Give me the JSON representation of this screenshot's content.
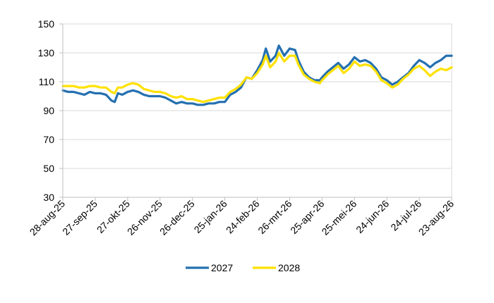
{
  "chart_data": {
    "type": "line",
    "title": "",
    "xlabel": "",
    "ylabel": "",
    "ylim": [
      30,
      150
    ],
    "yticks": [
      30,
      50,
      70,
      90,
      110,
      130,
      150
    ],
    "grid": "horizontal",
    "legend_position": "bottom",
    "x_ticks": [
      "28-aug-25",
      "27-sep-25",
      "27-okt-25",
      "26-nov-25",
      "26-dec-25",
      "25-jan-26",
      "24-feb-26",
      "26-mrt-26",
      "25-apr-26",
      "25-mei-26",
      "24-jun-26",
      "24-jul-26",
      "23-aug-26"
    ],
    "x_range": [
      "28-aug-25",
      "23-aug-26"
    ],
    "series": [
      {
        "name": "2027",
        "color": "#2470B0",
        "points": [
          [
            "28-aug-25",
            104
          ],
          [
            "02-sep-25",
            103
          ],
          [
            "07-sep-25",
            103
          ],
          [
            "12-sep-25",
            102
          ],
          [
            "17-sep-25",
            101
          ],
          [
            "22-sep-25",
            103
          ],
          [
            "27-sep-25",
            102
          ],
          [
            "02-okt-25",
            102
          ],
          [
            "07-okt-25",
            101
          ],
          [
            "12-okt-25",
            97
          ],
          [
            "15-okt-25",
            96
          ],
          [
            "18-okt-25",
            102
          ],
          [
            "22-okt-25",
            101
          ],
          [
            "27-okt-25",
            103
          ],
          [
            "01-nov-25",
            104
          ],
          [
            "06-nov-25",
            103
          ],
          [
            "11-nov-25",
            101
          ],
          [
            "16-nov-25",
            100
          ],
          [
            "21-nov-25",
            100
          ],
          [
            "26-nov-25",
            100
          ],
          [
            "01-dec-25",
            99
          ],
          [
            "06-dec-25",
            97
          ],
          [
            "11-dec-25",
            95
          ],
          [
            "16-dec-25",
            96
          ],
          [
            "21-dec-25",
            95
          ],
          [
            "26-dec-25",
            95
          ],
          [
            "31-dec-25",
            94
          ],
          [
            "05-jan-26",
            94
          ],
          [
            "10-jan-26",
            95
          ],
          [
            "15-jan-26",
            95
          ],
          [
            "20-jan-26",
            96
          ],
          [
            "25-jan-26",
            96
          ],
          [
            "30-jan-26",
            101
          ],
          [
            "04-feb-26",
            103
          ],
          [
            "09-feb-26",
            106
          ],
          [
            "14-feb-26",
            113
          ],
          [
            "19-feb-26",
            112
          ],
          [
            "24-feb-26",
            118
          ],
          [
            "01-mrt-26",
            125
          ],
          [
            "04-mrt-26",
            133
          ],
          [
            "08-mrt-26",
            124
          ],
          [
            "13-mrt-26",
            128
          ],
          [
            "16-mrt-26",
            135
          ],
          [
            "21-mrt-26",
            128
          ],
          [
            "26-mrt-26",
            133
          ],
          [
            "31-mrt-26",
            132
          ],
          [
            "03-apr-26",
            125
          ],
          [
            "08-apr-26",
            117
          ],
          [
            "13-apr-26",
            113
          ],
          [
            "18-apr-26",
            111
          ],
          [
            "23-apr-26",
            111
          ],
          [
            "25-apr-26",
            113
          ],
          [
            "30-apr-26",
            117
          ],
          [
            "05-mei-26",
            120
          ],
          [
            "10-mei-26",
            123
          ],
          [
            "15-mei-26",
            119
          ],
          [
            "20-mei-26",
            122
          ],
          [
            "25-mei-26",
            127
          ],
          [
            "30-mei-26",
            124
          ],
          [
            "04-jun-26",
            125
          ],
          [
            "09-jun-26",
            123
          ],
          [
            "14-jun-26",
            119
          ],
          [
            "19-jun-26",
            113
          ],
          [
            "24-jun-26",
            111
          ],
          [
            "29-jun-26",
            108
          ],
          [
            "04-jul-26",
            110
          ],
          [
            "09-jul-26",
            113
          ],
          [
            "14-jul-26",
            116
          ],
          [
            "19-jul-26",
            121
          ],
          [
            "24-jul-26",
            125
          ],
          [
            "29-jul-26",
            123
          ],
          [
            "03-aug-26",
            120
          ],
          [
            "08-aug-26",
            123
          ],
          [
            "13-aug-26",
            125
          ],
          [
            "18-aug-26",
            128
          ],
          [
            "23-aug-26",
            128
          ]
        ]
      },
      {
        "name": "2028",
        "color": "#FFE100",
        "points": [
          [
            "28-aug-25",
            107
          ],
          [
            "02-sep-25",
            107
          ],
          [
            "07-sep-25",
            107
          ],
          [
            "12-sep-25",
            106
          ],
          [
            "17-sep-25",
            106
          ],
          [
            "22-sep-25",
            107
          ],
          [
            "27-sep-25",
            107
          ],
          [
            "02-okt-25",
            106
          ],
          [
            "07-okt-25",
            106
          ],
          [
            "12-okt-25",
            103
          ],
          [
            "15-okt-25",
            102
          ],
          [
            "18-okt-25",
            106
          ],
          [
            "22-okt-25",
            106
          ],
          [
            "27-okt-25",
            108
          ],
          [
            "01-nov-25",
            109
          ],
          [
            "06-nov-25",
            108
          ],
          [
            "11-nov-25",
            105
          ],
          [
            "16-nov-25",
            104
          ],
          [
            "21-nov-25",
            103
          ],
          [
            "26-nov-25",
            103
          ],
          [
            "01-dec-25",
            102
          ],
          [
            "06-dec-25",
            100
          ],
          [
            "11-dec-25",
            99
          ],
          [
            "16-dec-25",
            100
          ],
          [
            "21-dec-25",
            98
          ],
          [
            "26-dec-25",
            98
          ],
          [
            "31-dec-25",
            97
          ],
          [
            "05-jan-26",
            96
          ],
          [
            "10-jan-26",
            97
          ],
          [
            "15-jan-26",
            98
          ],
          [
            "20-jan-26",
            99
          ],
          [
            "25-jan-26",
            99
          ],
          [
            "30-jan-26",
            103
          ],
          [
            "04-feb-26",
            105
          ],
          [
            "09-feb-26",
            108
          ],
          [
            "14-feb-26",
            113
          ],
          [
            "19-feb-26",
            112
          ],
          [
            "24-feb-26",
            116
          ],
          [
            "01-mrt-26",
            122
          ],
          [
            "04-mrt-26",
            128
          ],
          [
            "08-mrt-26",
            120
          ],
          [
            "13-mrt-26",
            124
          ],
          [
            "16-mrt-26",
            130
          ],
          [
            "21-mrt-26",
            124
          ],
          [
            "26-mrt-26",
            128
          ],
          [
            "31-mrt-26",
            128
          ],
          [
            "03-apr-26",
            122
          ],
          [
            "08-apr-26",
            115
          ],
          [
            "13-apr-26",
            112
          ],
          [
            "18-apr-26",
            110
          ],
          [
            "23-apr-26",
            109
          ],
          [
            "25-apr-26",
            111
          ],
          [
            "30-apr-26",
            115
          ],
          [
            "05-mei-26",
            118
          ],
          [
            "10-mei-26",
            121
          ],
          [
            "15-mei-26",
            116
          ],
          [
            "20-mei-26",
            119
          ],
          [
            "25-mei-26",
            124
          ],
          [
            "30-mei-26",
            121
          ],
          [
            "04-jun-26",
            122
          ],
          [
            "09-jun-26",
            121
          ],
          [
            "14-jun-26",
            117
          ],
          [
            "19-jun-26",
            111
          ],
          [
            "24-jun-26",
            109
          ],
          [
            "29-jun-26",
            106
          ],
          [
            "04-jul-26",
            108
          ],
          [
            "09-jul-26",
            112
          ],
          [
            "14-jul-26",
            115
          ],
          [
            "19-jul-26",
            119
          ],
          [
            "24-jul-26",
            121
          ],
          [
            "29-jul-26",
            118
          ],
          [
            "03-aug-26",
            114
          ],
          [
            "08-aug-26",
            117
          ],
          [
            "13-aug-26",
            119
          ],
          [
            "18-aug-26",
            118
          ],
          [
            "23-aug-26",
            120
          ]
        ]
      }
    ]
  }
}
